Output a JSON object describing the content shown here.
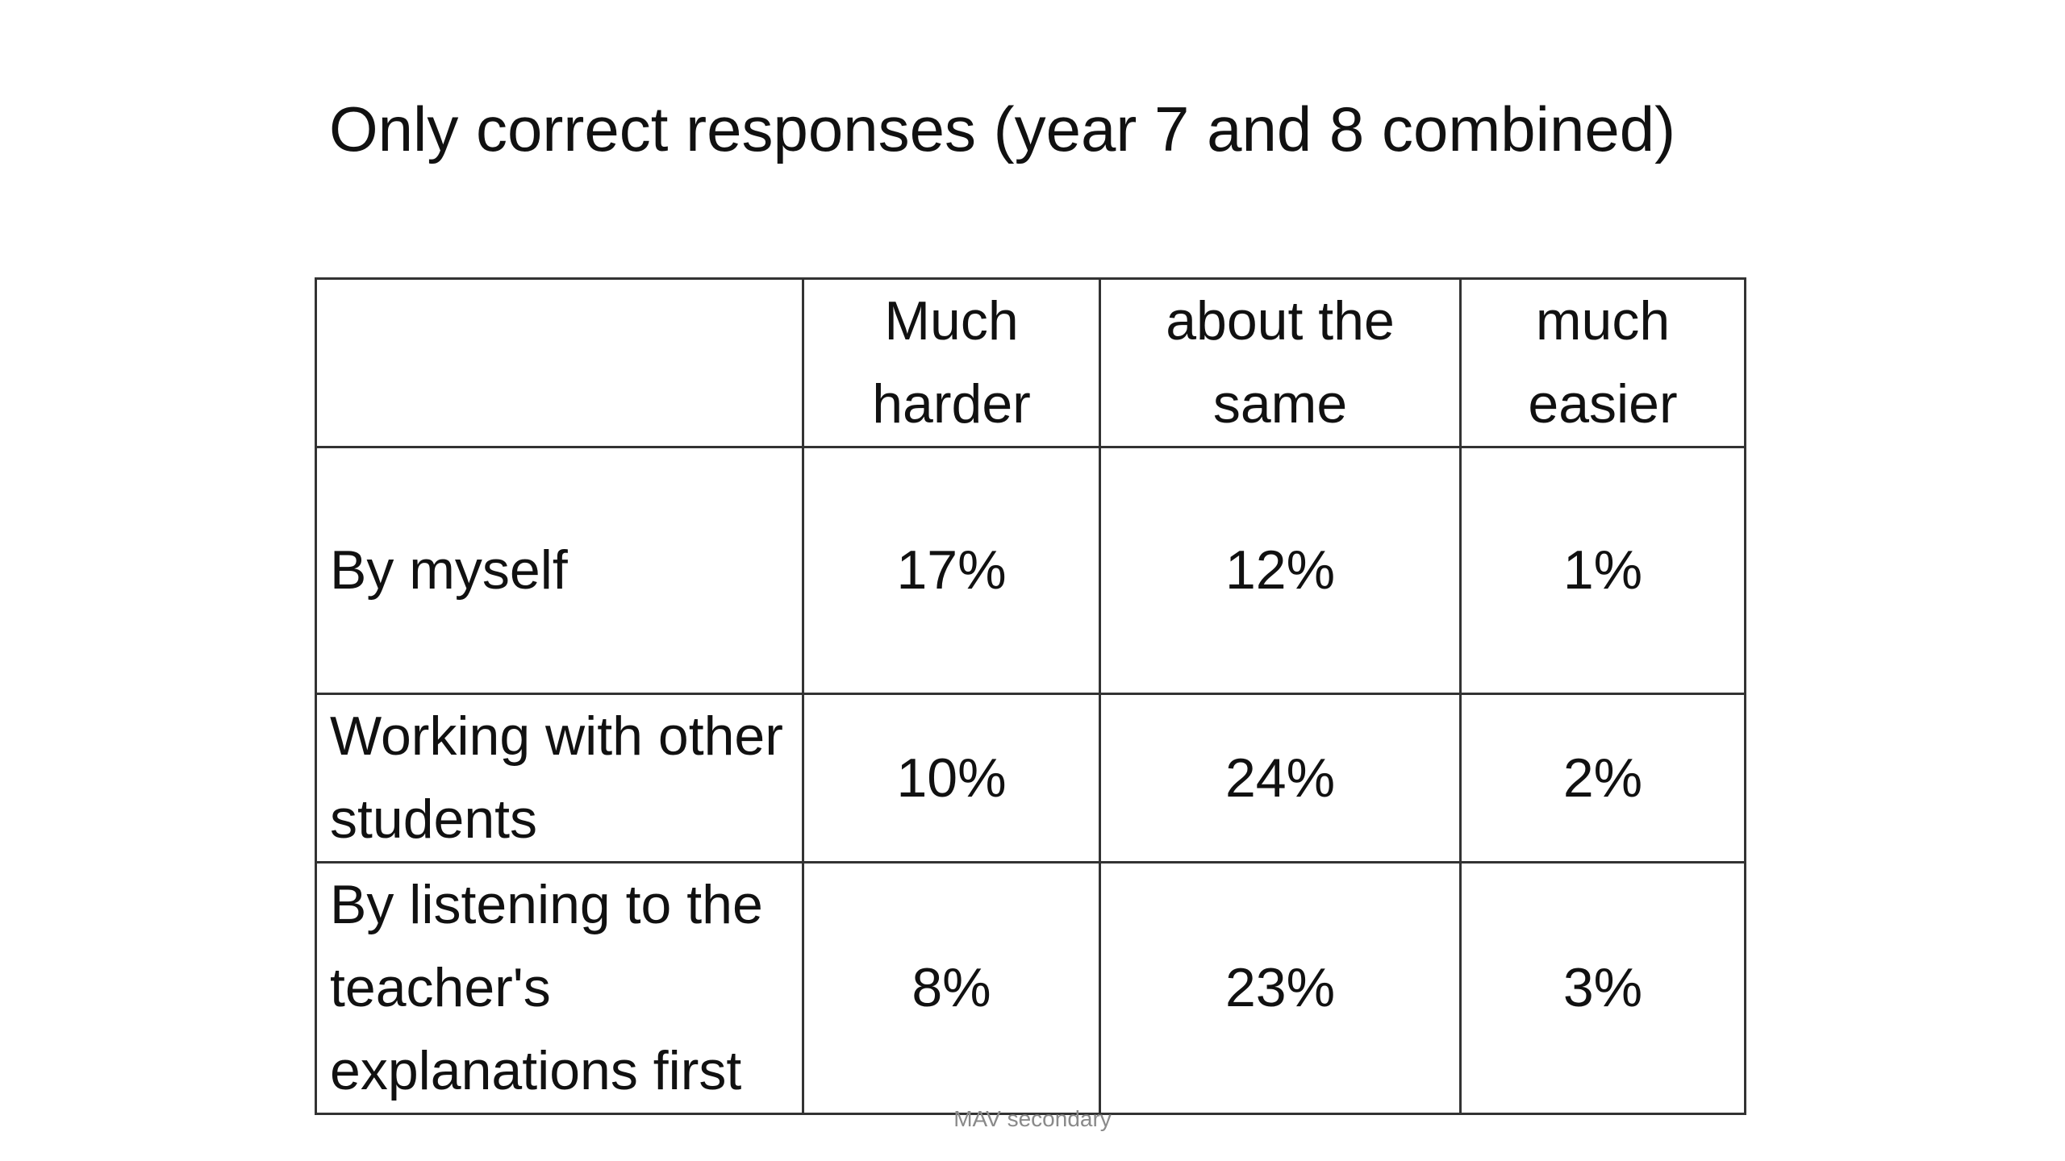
{
  "slide": {
    "title": "Only correct responses (year 7 and 8 combined)",
    "footer": "MAV secondary"
  },
  "table": {
    "headers": [
      "",
      "Much harder",
      "about the same",
      "much easier"
    ],
    "rows": [
      {
        "label": "By myself",
        "values": [
          "17%",
          "12%",
          "1%"
        ]
      },
      {
        "label": "Working with other students",
        "values": [
          "10%",
          "24%",
          "2%"
        ]
      },
      {
        "label": "By listening to the teacher's explanations first",
        "values": [
          "8%",
          "23%",
          "3%"
        ]
      }
    ]
  },
  "chart_data": {
    "type": "table",
    "title": "Only correct responses (year 7 and 8 combined)",
    "columns": [
      "Much harder",
      "about the same",
      "much easier"
    ],
    "rows": [
      "By myself",
      "Working with other students",
      "By listening to the teacher's explanations first"
    ],
    "values": [
      [
        "17%",
        "12%",
        "1%"
      ],
      [
        "10%",
        "24%",
        "2%"
      ],
      [
        "8%",
        "23%",
        "3%"
      ]
    ]
  }
}
